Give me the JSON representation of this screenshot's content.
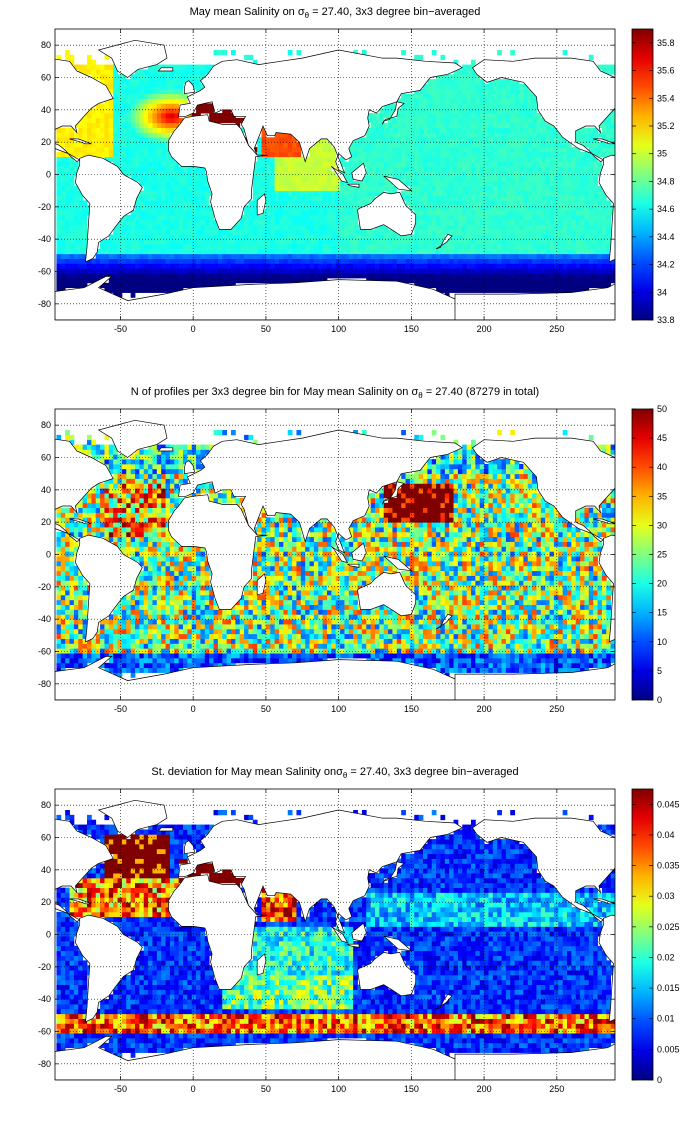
{
  "axes": {
    "xticks": [
      "-50",
      "0",
      "50",
      "100",
      "150",
      "200",
      "250"
    ],
    "yticks": [
      "80",
      "60",
      "40",
      "20",
      "0",
      "-20",
      "-40",
      "-60",
      "-80"
    ]
  },
  "panels": [
    {
      "title_pre": "May mean Salinity on σ",
      "title_sub": "θ",
      "title_post": " = 27.40, 3x3 degree bin−averaged",
      "colorbar_ticks": [
        "35.8",
        "35.6",
        "35.4",
        "35.2",
        "35",
        "34.8",
        "34.6",
        "34.4",
        "34.2",
        "34",
        "33.8"
      ],
      "field": "salinity"
    },
    {
      "title_pre": "N of profiles per 3x3 degree bin for May mean Salinity on σ",
      "title_sub": "θ",
      "title_post": " = 27.40 (87279 in total)",
      "colorbar_ticks": [
        "50",
        "45",
        "40",
        "35",
        "30",
        "25",
        "20",
        "15",
        "10",
        "5",
        "0"
      ],
      "field": "count"
    },
    {
      "title_pre": "St. deviation for May mean Salinity onσ",
      "title_sub": "θ",
      "title_post": " = 27.40, 3x3 degree bin−averaged",
      "colorbar_ticks": [
        "0.045",
        "0.04",
        "0.035",
        "0.03",
        "0.025",
        "0.02",
        "0.015",
        "0.01",
        "0.005",
        "0"
      ],
      "field": "stddev"
    }
  ],
  "colormap": "jet",
  "colors": {
    "land": "#ffffff",
    "coast": "#000000",
    "grid": "#000000"
  }
}
